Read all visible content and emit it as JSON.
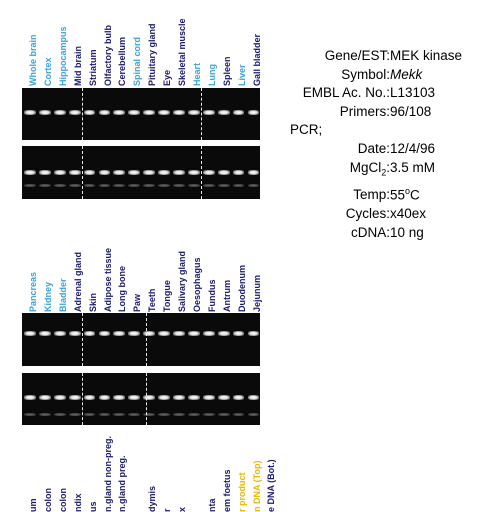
{
  "panel1": {
    "lanes": [
      {
        "label": "Whole brain",
        "color": "cyan"
      },
      {
        "label": "Cortex",
        "color": "cyan"
      },
      {
        "label": "Hippocampus",
        "color": "cyan"
      },
      {
        "label": "Mid brain",
        "color": "navy"
      },
      {
        "label": "Striatum",
        "color": "navy"
      },
      {
        "label": "Olfactory bulb",
        "color": "navy"
      },
      {
        "label": "Cerebellum",
        "color": "navy"
      },
      {
        "label": "Spinal cord",
        "color": "cyan"
      },
      {
        "label": "Pituitary gland",
        "color": "navy"
      },
      {
        "label": "Eye",
        "color": "navy"
      },
      {
        "label": "Skeletal muscle",
        "color": "navy"
      },
      {
        "label": "Heart",
        "color": "cyan"
      },
      {
        "label": "Lung",
        "color": "cyan"
      },
      {
        "label": "Spleen",
        "color": "navy"
      },
      {
        "label": "Liver",
        "color": "cyan"
      },
      {
        "label": "Gall bladder",
        "color": "navy"
      }
    ]
  },
  "panel2": {
    "lanes": [
      {
        "label": "Pancreas",
        "color": "cyan"
      },
      {
        "label": "Kidney",
        "color": "cyan"
      },
      {
        "label": "Bladder",
        "color": "cyan"
      },
      {
        "label": "Adrenal gland",
        "color": "navy"
      },
      {
        "label": "Skin",
        "color": "navy"
      },
      {
        "label": "Adipose tissue",
        "color": "navy"
      },
      {
        "label": "Long bone",
        "color": "navy"
      },
      {
        "label": "Paw",
        "color": "navy"
      },
      {
        "label": "Teeth",
        "color": "navy"
      },
      {
        "label": "Tongue",
        "color": "navy"
      },
      {
        "label": "Salivary gland",
        "color": "navy"
      },
      {
        "label": "Oesophagus",
        "color": "navy"
      },
      {
        "label": "Fundus",
        "color": "navy"
      },
      {
        "label": "Antrum",
        "color": "navy"
      },
      {
        "label": "Duodenum",
        "color": "navy"
      },
      {
        "label": "Jejunum",
        "color": "navy"
      }
    ]
  },
  "panel3": {
    "lanes": [
      {
        "label": "um",
        "color": "navy"
      },
      {
        "label": "colon",
        "color": "navy"
      },
      {
        "label": "colon",
        "color": "navy"
      },
      {
        "label": "ndix",
        "color": "navy"
      },
      {
        "label": "us",
        "color": "navy"
      },
      {
        "label": "n.gland non-preg.",
        "color": "navy"
      },
      {
        "label": "n.gland preg.",
        "color": "navy"
      },
      {
        "label": "",
        "color": "navy"
      },
      {
        "label": "dymis",
        "color": "navy"
      },
      {
        "label": "r",
        "color": "navy"
      },
      {
        "label": "x",
        "color": "navy"
      },
      {
        "label": "",
        "color": "navy"
      },
      {
        "label": "nta",
        "color": "navy"
      },
      {
        "label": "em foetus",
        "color": "navy"
      },
      {
        "label": "r product",
        "color": "yellow"
      },
      {
        "label": "n DNA (Top)",
        "color": "yellow"
      },
      {
        "label": "e DNA (Bot.)",
        "color": "navy"
      }
    ]
  },
  "info": {
    "gene_key": "Gene/EST:",
    "gene_val": "MEK kinase",
    "symbol_key": "Symbol:",
    "symbol_val": "Mekk",
    "embl_key": "EMBL Ac. No.:",
    "embl_val": "L13103",
    "primers_key": "Primers:",
    "primers_val": "96/108",
    "pcr_key": "PCR;",
    "date_key": "Date:",
    "date_val": "12/4/96",
    "mgcl_key_a": "MgCl",
    "mgcl_key_sub": "2",
    "mgcl_key_b": ":",
    "mgcl_val": "3.5 mM",
    "temp_key": "Temp:",
    "temp_val_a": "55",
    "temp_val_sup": "o",
    "temp_val_b": "C",
    "cycles_key": "Cycles:",
    "cycles_val": "x40ex",
    "cdna_key": "cDNA:",
    "cdna_val": "10 ng"
  }
}
